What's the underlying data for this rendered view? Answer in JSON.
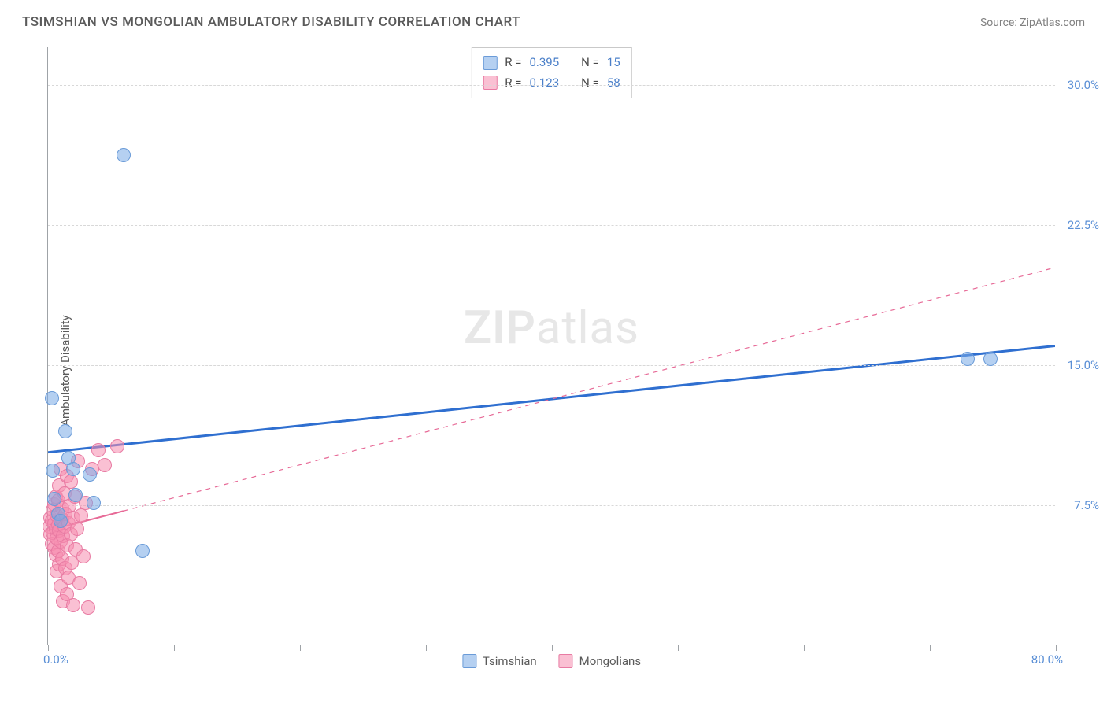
{
  "header": {
    "title": "TSIMSHIAN VS MONGOLIAN AMBULATORY DISABILITY CORRELATION CHART",
    "source": "Source: ZipAtlas.com"
  },
  "chart": {
    "type": "scatter",
    "y_axis_label": "Ambulatory Disability",
    "watermark": {
      "bold": "ZIP",
      "light": "atlas"
    },
    "background_color": "#ffffff",
    "grid_color": "#d8d8d8",
    "axis_color": "#9fa3a7",
    "tick_label_color": "#5a8fd6",
    "x_range": [
      0,
      80
    ],
    "y_range": [
      0,
      32
    ],
    "x_ticks": [
      {
        "pct": 0,
        "label": "0.0%"
      },
      {
        "pct": 12.5
      },
      {
        "pct": 25
      },
      {
        "pct": 37.5
      },
      {
        "pct": 50
      },
      {
        "pct": 62.5
      },
      {
        "pct": 75
      },
      {
        "pct": 87.5
      },
      {
        "pct": 100,
        "label": "80.0%"
      }
    ],
    "y_gridlines": [
      {
        "val": 7.5,
        "label": "7.5%"
      },
      {
        "val": 15.0,
        "label": "15.0%"
      },
      {
        "val": 22.5,
        "label": "22.5%"
      },
      {
        "val": 30.0,
        "label": "30.0%"
      }
    ],
    "series": [
      {
        "name": "Tsimshian",
        "fill": "rgba(120,170,230,0.55)",
        "stroke": "#6a9bd8",
        "marker_radius": 9,
        "trend": {
          "color": "#2f6fd0",
          "width": 3,
          "dash": "none",
          "y_at_x0": 10.3,
          "y_at_xmax": 16.0,
          "solid_until_x": 80
        },
        "points": [
          {
            "x": 0.3,
            "y": 13.2
          },
          {
            "x": 0.4,
            "y": 9.3
          },
          {
            "x": 1.4,
            "y": 11.4
          },
          {
            "x": 1.6,
            "y": 10.0
          },
          {
            "x": 2.0,
            "y": 9.4
          },
          {
            "x": 2.2,
            "y": 8.0
          },
          {
            "x": 3.3,
            "y": 9.1
          },
          {
            "x": 3.6,
            "y": 7.6
          },
          {
            "x": 6.0,
            "y": 26.2
          },
          {
            "x": 7.5,
            "y": 5.0
          },
          {
            "x": 0.8,
            "y": 7.0
          },
          {
            "x": 1.0,
            "y": 6.6
          },
          {
            "x": 0.5,
            "y": 7.8
          },
          {
            "x": 73.0,
            "y": 15.3
          },
          {
            "x": 74.8,
            "y": 15.3
          }
        ]
      },
      {
        "name": "Mongolians",
        "fill": "rgba(245,140,175,0.55)",
        "stroke": "#e87ba3",
        "marker_radius": 9,
        "trend": {
          "color": "#e76a97",
          "width": 2,
          "dash": "6 6",
          "y_at_x0": 6.1,
          "y_at_xmax": 20.2,
          "solid_until_x": 6
        },
        "points": [
          {
            "x": 0.1,
            "y": 6.3
          },
          {
            "x": 0.2,
            "y": 5.9
          },
          {
            "x": 0.2,
            "y": 6.8
          },
          {
            "x": 0.3,
            "y": 5.4
          },
          {
            "x": 0.3,
            "y": 6.6
          },
          {
            "x": 0.4,
            "y": 7.2
          },
          {
            "x": 0.4,
            "y": 6.0
          },
          {
            "x": 0.5,
            "y": 5.2
          },
          {
            "x": 0.5,
            "y": 7.5
          },
          {
            "x": 0.5,
            "y": 6.5
          },
          {
            "x": 0.6,
            "y": 6.2
          },
          {
            "x": 0.6,
            "y": 4.8
          },
          {
            "x": 0.6,
            "y": 7.9
          },
          {
            "x": 0.7,
            "y": 5.7
          },
          {
            "x": 0.7,
            "y": 6.9
          },
          {
            "x": 0.7,
            "y": 3.9
          },
          {
            "x": 0.8,
            "y": 5.0
          },
          {
            "x": 0.8,
            "y": 6.4
          },
          {
            "x": 0.8,
            "y": 7.7
          },
          {
            "x": 0.9,
            "y": 4.3
          },
          {
            "x": 0.9,
            "y": 8.5
          },
          {
            "x": 0.9,
            "y": 6.1
          },
          {
            "x": 1.0,
            "y": 5.5
          },
          {
            "x": 1.0,
            "y": 9.4
          },
          {
            "x": 1.0,
            "y": 3.1
          },
          {
            "x": 1.1,
            "y": 6.7
          },
          {
            "x": 1.1,
            "y": 4.6
          },
          {
            "x": 1.1,
            "y": 7.3
          },
          {
            "x": 1.2,
            "y": 2.3
          },
          {
            "x": 1.2,
            "y": 5.8
          },
          {
            "x": 1.3,
            "y": 6.3
          },
          {
            "x": 1.3,
            "y": 8.1
          },
          {
            "x": 1.4,
            "y": 4.1
          },
          {
            "x": 1.4,
            "y": 7.0
          },
          {
            "x": 1.5,
            "y": 5.3
          },
          {
            "x": 1.5,
            "y": 2.7
          },
          {
            "x": 1.5,
            "y": 9.0
          },
          {
            "x": 1.6,
            "y": 6.5
          },
          {
            "x": 1.6,
            "y": 3.6
          },
          {
            "x": 1.7,
            "y": 7.4
          },
          {
            "x": 1.8,
            "y": 5.9
          },
          {
            "x": 1.8,
            "y": 8.7
          },
          {
            "x": 1.9,
            "y": 4.4
          },
          {
            "x": 2.0,
            "y": 6.8
          },
          {
            "x": 2.0,
            "y": 2.1
          },
          {
            "x": 2.1,
            "y": 7.9
          },
          {
            "x": 2.2,
            "y": 5.1
          },
          {
            "x": 2.3,
            "y": 6.2
          },
          {
            "x": 2.4,
            "y": 9.8
          },
          {
            "x": 2.5,
            "y": 3.3
          },
          {
            "x": 2.6,
            "y": 6.9
          },
          {
            "x": 2.8,
            "y": 4.7
          },
          {
            "x": 3.0,
            "y": 7.6
          },
          {
            "x": 3.2,
            "y": 2.0
          },
          {
            "x": 3.5,
            "y": 9.4
          },
          {
            "x": 4.0,
            "y": 10.4
          },
          {
            "x": 4.5,
            "y": 9.6
          },
          {
            "x": 5.5,
            "y": 10.6
          }
        ]
      }
    ],
    "legend_top": {
      "rows": [
        {
          "swatch_fill": "rgba(120,170,230,0.55)",
          "swatch_stroke": "#6a9bd8",
          "r_label": "R =",
          "r_val": "0.395",
          "n_label": "N =",
          "n_val": "15"
        },
        {
          "swatch_fill": "rgba(245,140,175,0.55)",
          "swatch_stroke": "#e87ba3",
          "r_label": "R =",
          "r_val": "0.123",
          "n_label": "N =",
          "n_val": "58"
        }
      ]
    },
    "legend_bottom": {
      "items": [
        {
          "swatch_fill": "rgba(120,170,230,0.55)",
          "swatch_stroke": "#6a9bd8",
          "label": "Tsimshian"
        },
        {
          "swatch_fill": "rgba(245,140,175,0.55)",
          "swatch_stroke": "#e87ba3",
          "label": "Mongolians"
        }
      ]
    }
  }
}
